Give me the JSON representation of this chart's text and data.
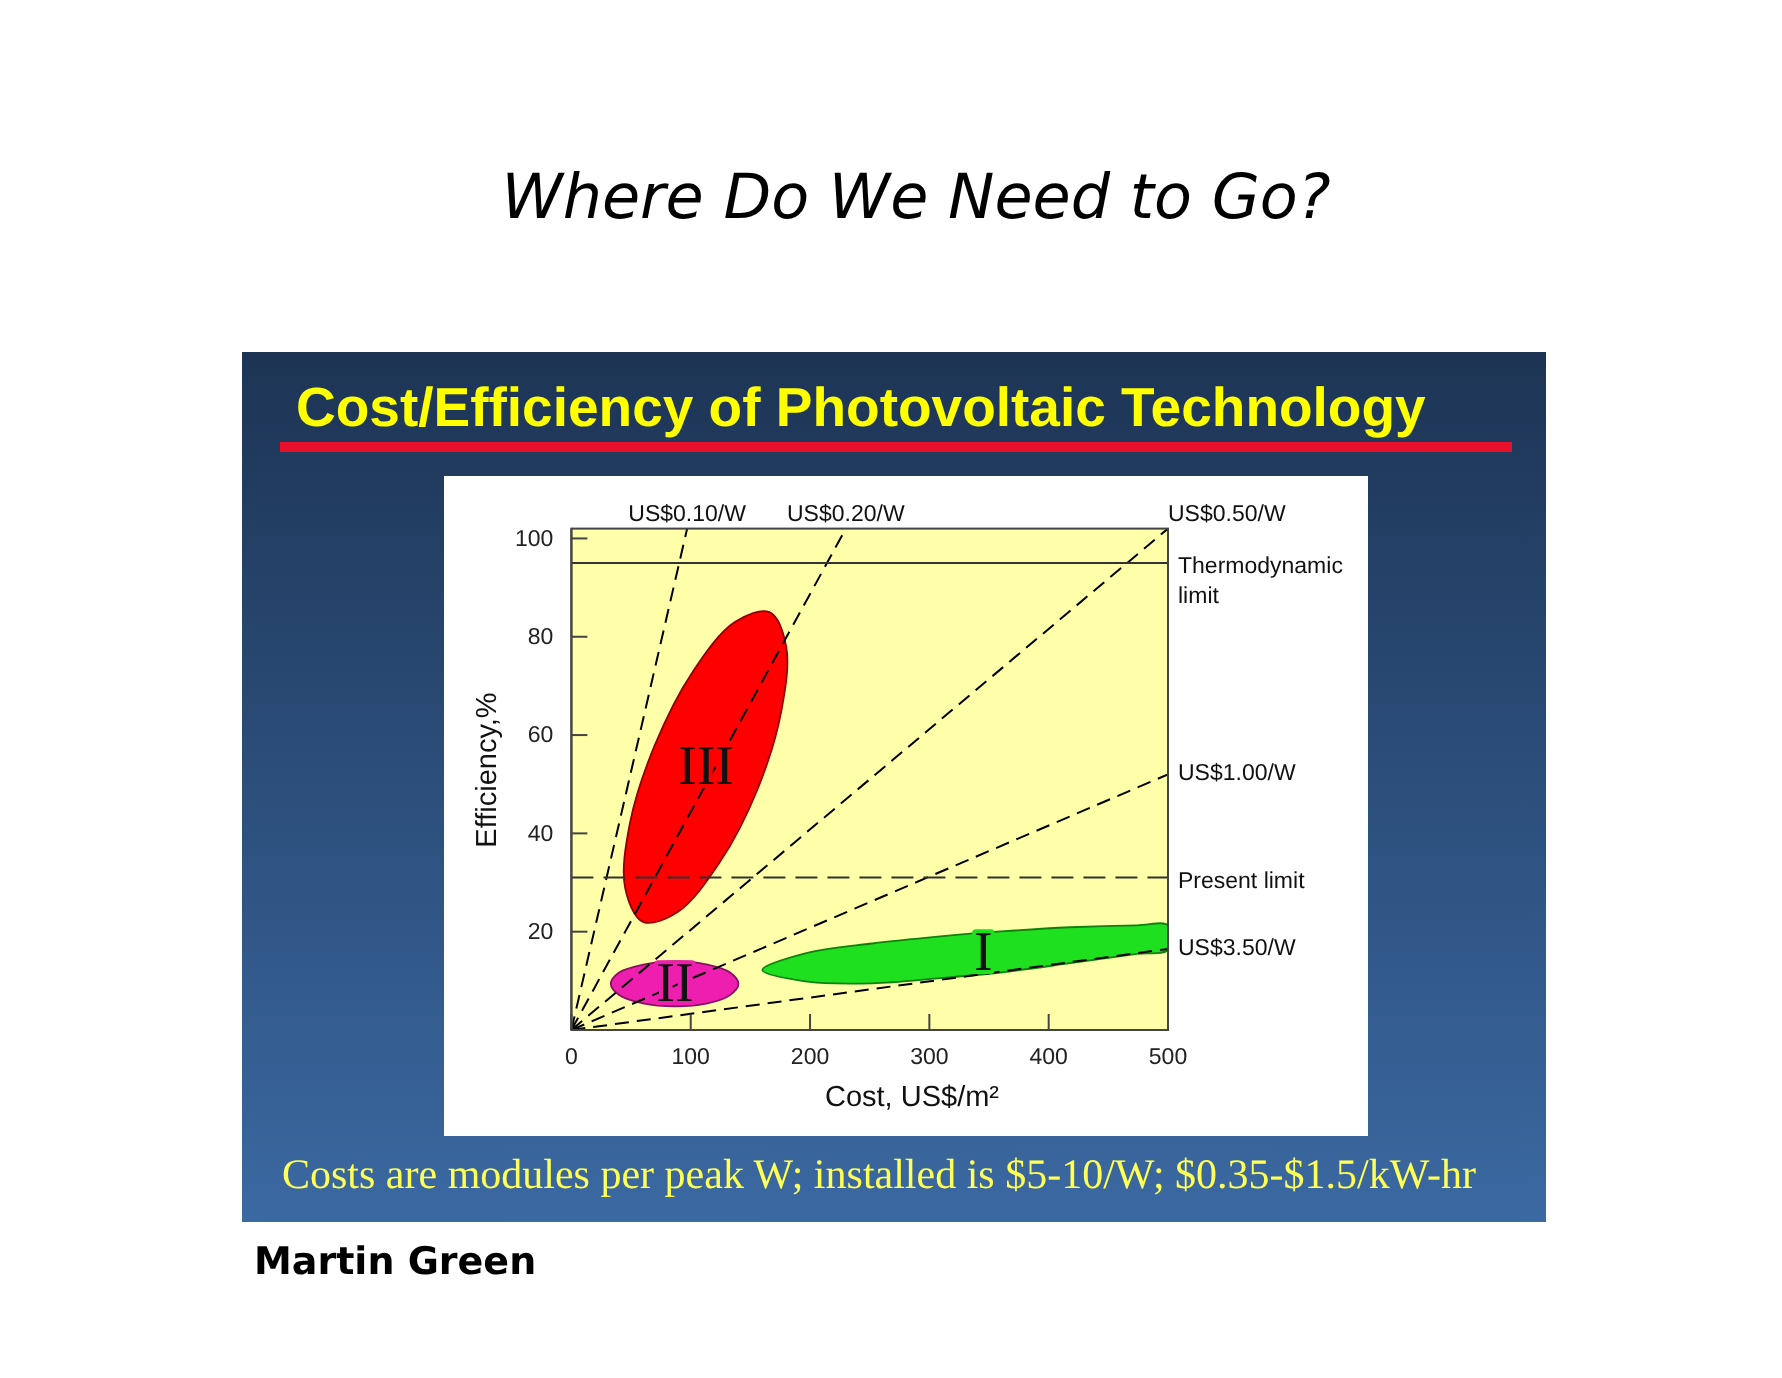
{
  "chart_data": {
    "type": "line",
    "title": "Where Do We Need to Go?",
    "subtitle": "Cost/Efficiency of Photovoltaic Technology",
    "xlabel": "Cost, US$/m²",
    "ylabel": "Efficiency,%",
    "annotations": [
      "Costs are modules per peak W; installed is $5-10/W; $0.35-$1.5/kW-hr",
      "Martin Green"
    ],
    "xlim": [
      0,
      500
    ],
    "xticks": [
      0,
      100,
      200,
      300,
      400,
      500
    ],
    "ylim": [
      0,
      102
    ],
    "yticks": [
      20,
      40,
      60,
      80,
      100
    ],
    "line_style": "dashed",
    "series": [
      {
        "type": "area",
        "name": "III",
        "color": "#ff0000",
        "x": [
          166,
          180,
          176,
          156,
          124,
          89,
          60,
          45,
          49,
          70,
          102,
          137
        ],
        "values": [
          85,
          78,
          65,
          49,
          34,
          24,
          22,
          29,
          42,
          58,
          73,
          83
        ]
      },
      {
        "type": "area",
        "name": "II",
        "color": "#ee1fae",
        "x": [
          140,
          133,
          114,
          87,
          60,
          40,
          33,
          40,
          60,
          87,
          114,
          133
        ],
        "values": [
          9.4,
          11.7,
          13.3,
          14,
          13.3,
          11.7,
          9.4,
          7.1,
          5.4,
          4.8,
          5.4,
          7.1
        ]
      },
      {
        "type": "area",
        "name": "I",
        "color": "#1fe01f",
        "x": [
          160,
          196,
          252,
          307,
          363,
          418,
          474,
          500,
          500,
          474,
          418,
          363,
          307,
          252,
          196
        ],
        "values": [
          12.2,
          15.6,
          17.6,
          19,
          20.1,
          20.9,
          21.3,
          21.3,
          16.3,
          15.5,
          13.6,
          11.8,
          10.5,
          9.5,
          9.9
        ]
      },
      {
        "name": "US$0.10/W",
        "color": "#000000",
        "x": [
          0,
          97
        ],
        "values": [
          0,
          102
        ]
      },
      {
        "name": "US$0.20/W",
        "color": "#000000",
        "x": [
          0,
          230
        ],
        "values": [
          0,
          102
        ]
      },
      {
        "name": "US$0.50/W",
        "color": "#000000",
        "x": [
          0,
          500
        ],
        "values": [
          0,
          102
        ]
      },
      {
        "name": "US$1.00/W",
        "color": "#000000",
        "x": [
          0,
          500
        ],
        "values": [
          0,
          52
        ]
      },
      {
        "name": "US$3.50/W",
        "color": "#000000",
        "x": [
          0,
          500
        ],
        "values": [
          0,
          16.5
        ]
      }
    ],
    "ref_lines": [
      {
        "axis": "y",
        "value": 95,
        "label": "Thermodynamic limit",
        "color": "#333333",
        "line_style": "solid"
      },
      {
        "axis": "y",
        "value": 31,
        "label": "Present limit",
        "color": "#333333",
        "line_style": "dashed"
      }
    ]
  }
}
